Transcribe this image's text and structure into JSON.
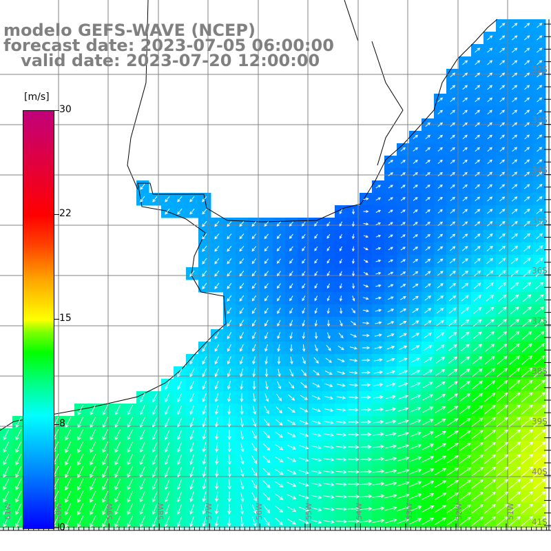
{
  "title": {
    "model": "modelo GEFS-WAVE (NCEP)",
    "forecast": "forecast date: 2023-07-05 06:00:00",
    "valid": "   valid date: 2023-07-20 12:00:00"
  },
  "colorbar": {
    "unit": "[m/s]",
    "labels": [
      "30",
      "22",
      "15",
      "8",
      "0"
    ],
    "values": [
      30,
      22,
      15,
      8,
      0
    ]
  },
  "axes": {
    "lon_labels": [
      "61W",
      "60W",
      "59W",
      "58W",
      "57W",
      "56W",
      "55W",
      "54W",
      "53W",
      "52W",
      "51W"
    ],
    "lat_labels": [
      "32S",
      "33S",
      "34S",
      "35S",
      "36S",
      "37S",
      "38S",
      "39S",
      "40S",
      "41S"
    ]
  },
  "colors": {
    "land": "#ffffff",
    "grid": "#808080",
    "arrow": "#ffffff",
    "label": "#808080"
  }
}
